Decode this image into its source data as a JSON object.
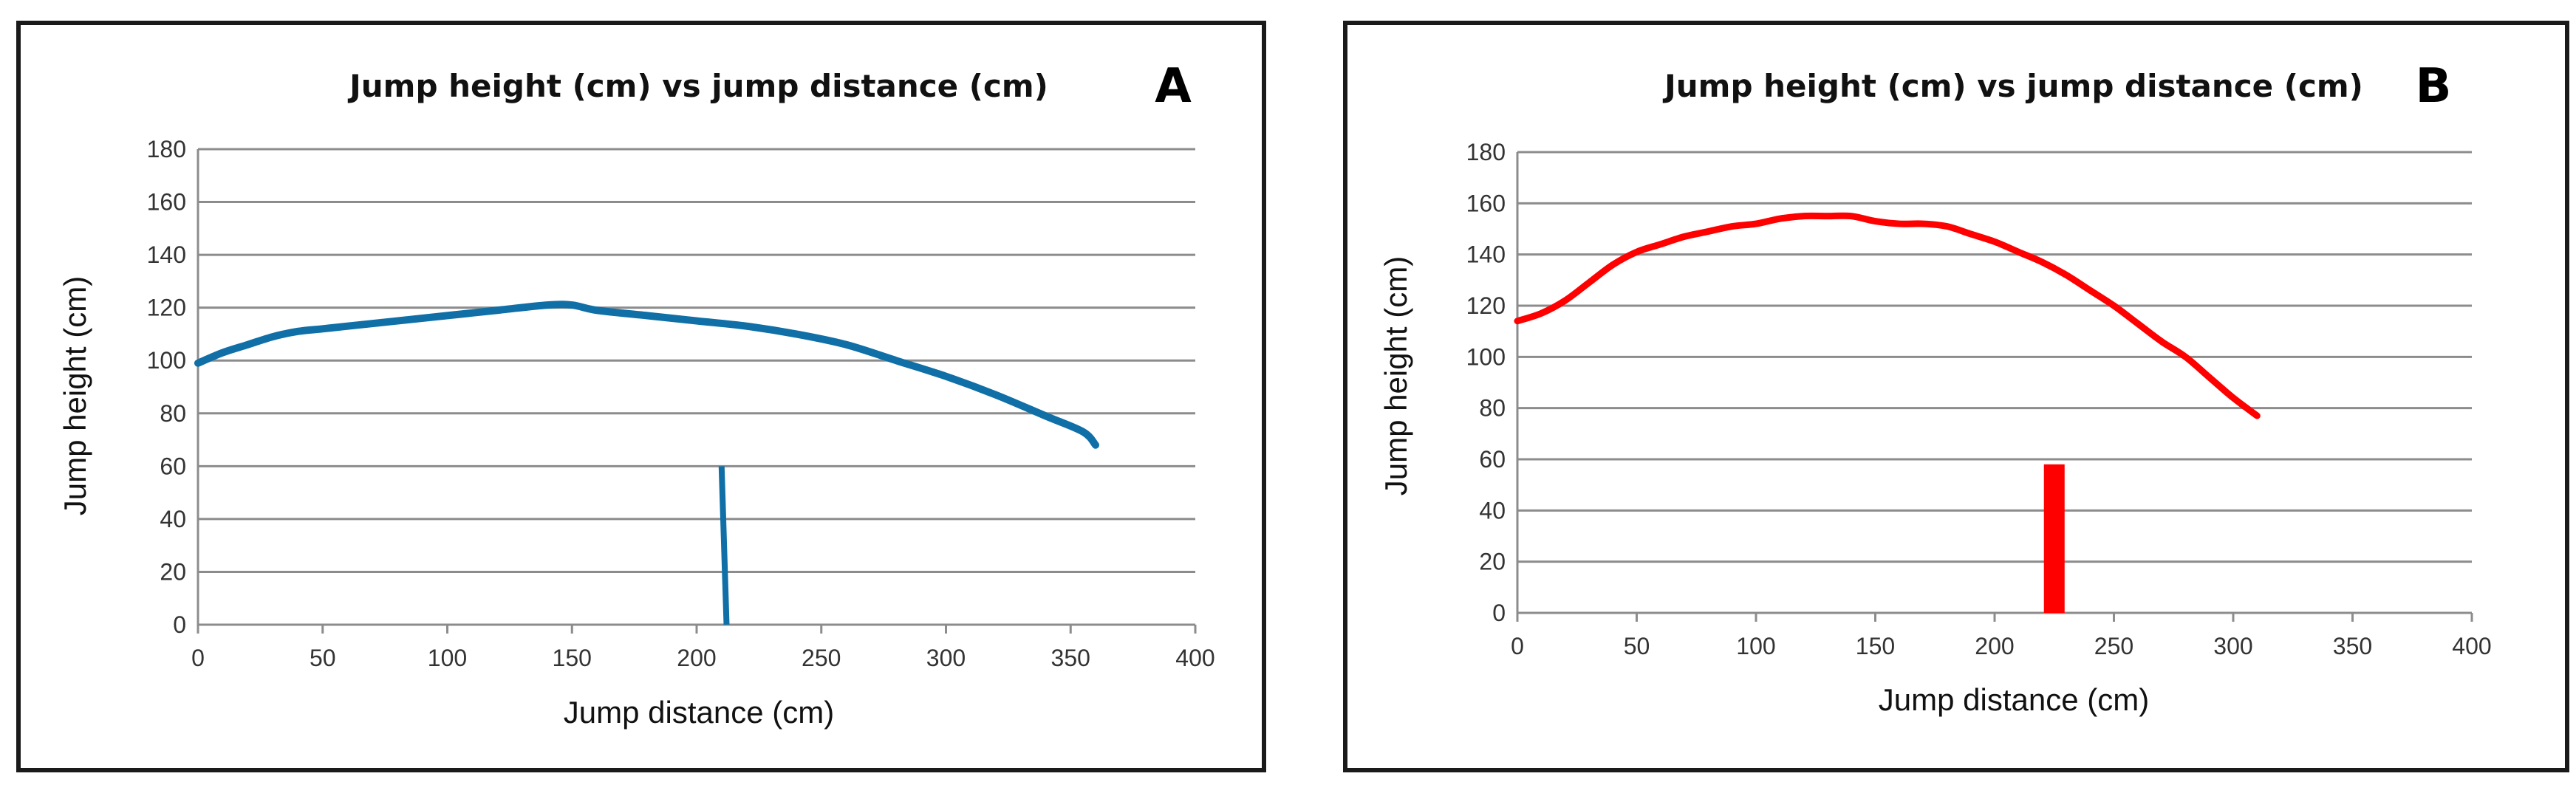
{
  "chart_data": [
    {
      "type": "line",
      "panel_label": "A",
      "title": "Jump height (cm) vs jump distance (cm)",
      "xlabel": "Jump distance (cm)",
      "ylabel": "Jump height (cm)",
      "xlim": [
        0,
        400
      ],
      "ylim": [
        0,
        180
      ],
      "xticks": [
        0,
        50,
        100,
        150,
        200,
        250,
        300,
        350,
        400
      ],
      "yticks": [
        0,
        20,
        40,
        60,
        80,
        100,
        120,
        140,
        160,
        180
      ],
      "grid": true,
      "color": "#0f6fa6",
      "series": [
        {
          "name": "trajectory",
          "x": [
            0,
            10,
            20,
            30,
            40,
            50,
            60,
            80,
            100,
            120,
            140,
            150,
            160,
            180,
            200,
            220,
            240,
            260,
            280,
            300,
            320,
            340,
            355,
            360
          ],
          "y": [
            99,
            103,
            106,
            109,
            111,
            112,
            113,
            115,
            117,
            119,
            121,
            121,
            119,
            117,
            115,
            113,
            110,
            106,
            100,
            94,
            87,
            79,
            73,
            68
          ]
        },
        {
          "name": "obstacle",
          "x": [
            210,
            212
          ],
          "y": [
            60,
            0
          ]
        }
      ]
    },
    {
      "type": "line",
      "panel_label": "B",
      "title": "Jump height (cm) vs jump distance (cm)",
      "xlabel": "Jump distance (cm)",
      "ylabel": "Jump height (cm)",
      "xlim": [
        0,
        400
      ],
      "ylim": [
        0,
        180
      ],
      "xticks": [
        0,
        50,
        100,
        150,
        200,
        250,
        300,
        350,
        400
      ],
      "yticks": [
        0,
        20,
        40,
        60,
        80,
        100,
        120,
        140,
        160,
        180
      ],
      "grid": true,
      "color": "#ff0000",
      "series": [
        {
          "name": "trajectory",
          "x": [
            0,
            10,
            20,
            30,
            40,
            50,
            60,
            70,
            80,
            90,
            100,
            110,
            120,
            130,
            140,
            150,
            160,
            170,
            180,
            190,
            200,
            210,
            220,
            230,
            240,
            250,
            260,
            270,
            280,
            290,
            300,
            310
          ],
          "y": [
            114,
            117,
            122,
            129,
            136,
            141,
            144,
            147,
            149,
            151,
            152,
            154,
            155,
            155,
            155,
            153,
            152,
            152,
            151,
            148,
            145,
            141,
            137,
            132,
            126,
            120,
            113,
            106,
            100,
            92,
            84,
            77
          ]
        },
        {
          "name": "obstacle",
          "x": [
            225,
            225
          ],
          "y": [
            58,
            0
          ]
        }
      ]
    }
  ]
}
